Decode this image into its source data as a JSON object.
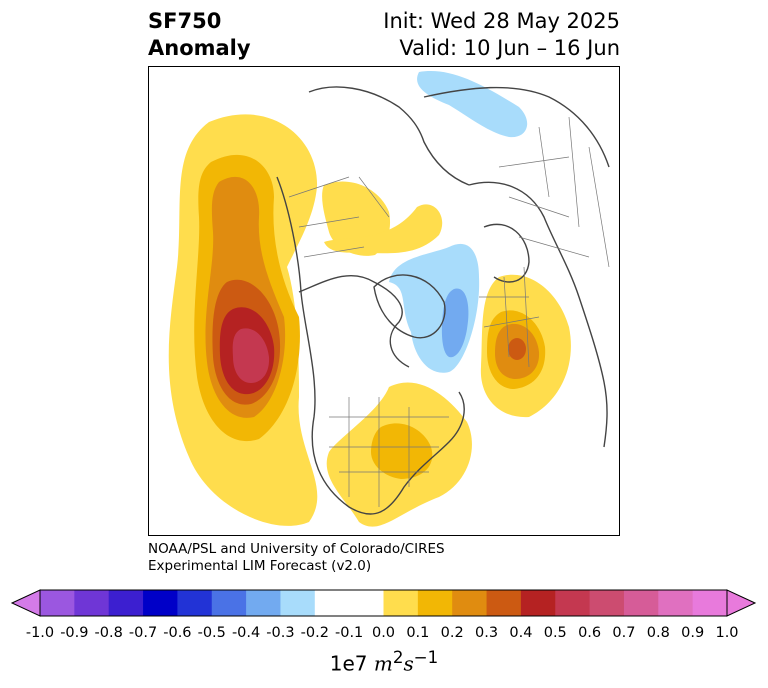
{
  "title": {
    "variable": "SF750",
    "field": "Anomaly",
    "init": "Init: Wed 28 May 2025",
    "valid": "Valid: 10 Jun – 16 Jun"
  },
  "credit": {
    "line1": "NOAA/PSL and University of Colorado/CIRES",
    "line2": "Experimental LIM Forecast (v2.0)"
  },
  "colorbar": {
    "ticks": [
      "-1.0",
      "-0.9",
      "-0.8",
      "-0.7",
      "-0.6",
      "-0.5",
      "-0.4",
      "-0.3",
      "-0.2",
      "-0.1",
      "0.0",
      "0.1",
      "0.2",
      "0.3",
      "0.4",
      "0.5",
      "0.6",
      "0.7",
      "0.8",
      "0.9",
      "1.0"
    ],
    "colors": [
      "#9b57e0",
      "#6f36d6",
      "#3c1fd0",
      "#0000c8",
      "#2233d6",
      "#4a72e6",
      "#72aaf0",
      "#a8dcfb",
      "#ffffff",
      "#ffffff",
      "#ffdd4d",
      "#f2b705",
      "#e08c10",
      "#cc5a12",
      "#b52222",
      "#c43850",
      "#cc4c70",
      "#d65c98",
      "#e070c0",
      "#e87adc"
    ],
    "under_color": "#d47be8",
    "over_color": "#e87adc",
    "units_prefix": "1e7",
    "units_main": "m",
    "units_sup1": "2",
    "units_s": "s",
    "units_sup2": "−1"
  },
  "map": {
    "projection": "north-polar-stereographic",
    "positive_color_levels": [
      "#ffdd4d",
      "#f2b705",
      "#e08c10",
      "#cc5a12",
      "#b52222",
      "#c43850"
    ],
    "negative_color_levels": [
      "#a8dcfb",
      "#72aaf0"
    ]
  }
}
